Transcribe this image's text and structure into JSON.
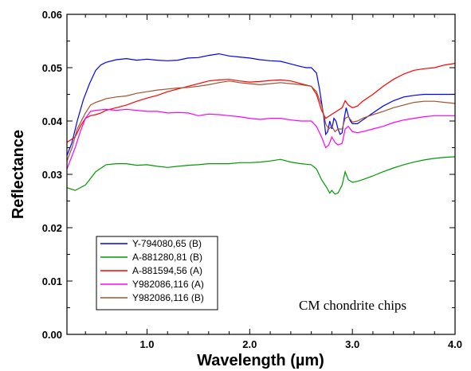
{
  "chart_data": {
    "type": "line",
    "title": "",
    "xlabel": "Wavelength (µm)",
    "ylabel": "Reflectance",
    "xlim": [
      0.22,
      4.0
    ],
    "ylim": [
      0.0,
      0.06
    ],
    "xticks": [
      1.0,
      2.0,
      3.0,
      4.0
    ],
    "xtick_labels": [
      "1.0",
      "2.0",
      "3.0",
      "4.0"
    ],
    "yticks": [
      0.0,
      0.01,
      0.02,
      0.03,
      0.04,
      0.05,
      0.06
    ],
    "ytick_labels": [
      "0.00",
      "0.01",
      "0.02",
      "0.03",
      "0.04",
      "0.05",
      "0.06"
    ],
    "grid": false,
    "legend_position": "bottom-left",
    "annotation": "CM chondrite chips",
    "series": [
      {
        "name": "Y-794080,65 (B)",
        "color": "#0000ff",
        "points": [
          [
            0.22,
            0.0335
          ],
          [
            0.27,
            0.036
          ],
          [
            0.32,
            0.04
          ],
          [
            0.38,
            0.044
          ],
          [
            0.44,
            0.047
          ],
          [
            0.5,
            0.0495
          ],
          [
            0.55,
            0.0505
          ],
          [
            0.6,
            0.051
          ],
          [
            0.7,
            0.0515
          ],
          [
            0.8,
            0.0517
          ],
          [
            0.9,
            0.0514
          ],
          [
            1.0,
            0.0516
          ],
          [
            1.1,
            0.0514
          ],
          [
            1.2,
            0.0513
          ],
          [
            1.3,
            0.0514
          ],
          [
            1.4,
            0.0518
          ],
          [
            1.5,
            0.0519
          ],
          [
            1.6,
            0.0523
          ],
          [
            1.7,
            0.0526
          ],
          [
            1.8,
            0.0522
          ],
          [
            1.9,
            0.052
          ],
          [
            2.0,
            0.0518
          ],
          [
            2.1,
            0.0515
          ],
          [
            2.2,
            0.0513
          ],
          [
            2.3,
            0.0512
          ],
          [
            2.4,
            0.0507
          ],
          [
            2.5,
            0.0502
          ],
          [
            2.55,
            0.05
          ],
          [
            2.6,
            0.05
          ],
          [
            2.65,
            0.049
          ],
          [
            2.68,
            0.046
          ],
          [
            2.72,
            0.041
          ],
          [
            2.74,
            0.0375
          ],
          [
            2.76,
            0.038
          ],
          [
            2.78,
            0.04
          ],
          [
            2.8,
            0.0385
          ],
          [
            2.82,
            0.0405
          ],
          [
            2.84,
            0.04
          ],
          [
            2.86,
            0.0385
          ],
          [
            2.88,
            0.0375
          ],
          [
            2.9,
            0.0378
          ],
          [
            2.92,
            0.0405
          ],
          [
            2.94,
            0.0425
          ],
          [
            2.96,
            0.041
          ],
          [
            2.98,
            0.04
          ],
          [
            3.0,
            0.0395
          ],
          [
            3.05,
            0.0395
          ],
          [
            3.1,
            0.0402
          ],
          [
            3.2,
            0.0415
          ],
          [
            3.3,
            0.0428
          ],
          [
            3.4,
            0.0438
          ],
          [
            3.5,
            0.0445
          ],
          [
            3.6,
            0.0448
          ],
          [
            3.7,
            0.045
          ],
          [
            3.8,
            0.045
          ],
          [
            3.9,
            0.045
          ],
          [
            4.0,
            0.045
          ]
        ]
      },
      {
        "name": "A-881280,81 (B)",
        "color": "#009900",
        "points": [
          [
            0.22,
            0.0275
          ],
          [
            0.3,
            0.027
          ],
          [
            0.4,
            0.028
          ],
          [
            0.5,
            0.0305
          ],
          [
            0.6,
            0.0318
          ],
          [
            0.7,
            0.032
          ],
          [
            0.8,
            0.032
          ],
          [
            0.9,
            0.0317
          ],
          [
            1.0,
            0.0318
          ],
          [
            1.1,
            0.0315
          ],
          [
            1.2,
            0.0313
          ],
          [
            1.3,
            0.0315
          ],
          [
            1.4,
            0.0317
          ],
          [
            1.5,
            0.0318
          ],
          [
            1.6,
            0.032
          ],
          [
            1.7,
            0.032
          ],
          [
            1.8,
            0.032
          ],
          [
            1.9,
            0.0322
          ],
          [
            2.0,
            0.0322
          ],
          [
            2.1,
            0.0323
          ],
          [
            2.2,
            0.0325
          ],
          [
            2.3,
            0.0328
          ],
          [
            2.4,
            0.0323
          ],
          [
            2.5,
            0.032
          ],
          [
            2.6,
            0.0318
          ],
          [
            2.65,
            0.031
          ],
          [
            2.7,
            0.029
          ],
          [
            2.75,
            0.0275
          ],
          [
            2.78,
            0.0265
          ],
          [
            2.8,
            0.027
          ],
          [
            2.83,
            0.0263
          ],
          [
            2.86,
            0.0265
          ],
          [
            2.9,
            0.028
          ],
          [
            2.93,
            0.0305
          ],
          [
            2.96,
            0.029
          ],
          [
            3.0,
            0.0285
          ],
          [
            3.05,
            0.0287
          ],
          [
            3.1,
            0.029
          ],
          [
            3.2,
            0.0297
          ],
          [
            3.3,
            0.0305
          ],
          [
            3.4,
            0.0312
          ],
          [
            3.5,
            0.0318
          ],
          [
            3.6,
            0.0323
          ],
          [
            3.7,
            0.0327
          ],
          [
            3.8,
            0.033
          ],
          [
            3.9,
            0.0332
          ],
          [
            4.0,
            0.0333
          ]
        ]
      },
      {
        "name": "A-881594,56 (A)",
        "color": "#ff0000",
        "points": [
          [
            0.22,
            0.036
          ],
          [
            0.3,
            0.037
          ],
          [
            0.35,
            0.039
          ],
          [
            0.4,
            0.0405
          ],
          [
            0.45,
            0.041
          ],
          [
            0.5,
            0.0412
          ],
          [
            0.55,
            0.0415
          ],
          [
            0.6,
            0.042
          ],
          [
            0.7,
            0.0425
          ],
          [
            0.8,
            0.043
          ],
          [
            0.9,
            0.0437
          ],
          [
            1.0,
            0.0443
          ],
          [
            1.1,
            0.0448
          ],
          [
            1.2,
            0.0455
          ],
          [
            1.3,
            0.046
          ],
          [
            1.4,
            0.0465
          ],
          [
            1.5,
            0.047
          ],
          [
            1.6,
            0.0475
          ],
          [
            1.7,
            0.0477
          ],
          [
            1.8,
            0.0478
          ],
          [
            1.9,
            0.0475
          ],
          [
            2.0,
            0.0473
          ],
          [
            2.1,
            0.0474
          ],
          [
            2.2,
            0.0476
          ],
          [
            2.3,
            0.0477
          ],
          [
            2.4,
            0.0475
          ],
          [
            2.5,
            0.047
          ],
          [
            2.6,
            0.0465
          ],
          [
            2.65,
            0.045
          ],
          [
            2.7,
            0.042
          ],
          [
            2.74,
            0.0405
          ],
          [
            2.78,
            0.041
          ],
          [
            2.82,
            0.0415
          ],
          [
            2.86,
            0.042
          ],
          [
            2.9,
            0.0425
          ],
          [
            2.93,
            0.0438
          ],
          [
            2.96,
            0.043
          ],
          [
            3.0,
            0.0425
          ],
          [
            3.05,
            0.0428
          ],
          [
            3.1,
            0.0437
          ],
          [
            3.2,
            0.045
          ],
          [
            3.3,
            0.0465
          ],
          [
            3.4,
            0.0478
          ],
          [
            3.5,
            0.0488
          ],
          [
            3.6,
            0.0495
          ],
          [
            3.7,
            0.0498
          ],
          [
            3.8,
            0.05
          ],
          [
            3.9,
            0.0505
          ],
          [
            4.0,
            0.0508
          ]
        ]
      },
      {
        "name": "Y982086,116 (A)",
        "color": "#ff00ff",
        "points": [
          [
            0.22,
            0.031
          ],
          [
            0.3,
            0.035
          ],
          [
            0.35,
            0.038
          ],
          [
            0.4,
            0.0405
          ],
          [
            0.45,
            0.0418
          ],
          [
            0.5,
            0.042
          ],
          [
            0.6,
            0.0422
          ],
          [
            0.7,
            0.042
          ],
          [
            0.8,
            0.0422
          ],
          [
            0.9,
            0.042
          ],
          [
            1.0,
            0.0418
          ],
          [
            1.1,
            0.0418
          ],
          [
            1.2,
            0.0415
          ],
          [
            1.3,
            0.0416
          ],
          [
            1.4,
            0.0415
          ],
          [
            1.5,
            0.041
          ],
          [
            1.6,
            0.0413
          ],
          [
            1.7,
            0.0412
          ],
          [
            1.8,
            0.041
          ],
          [
            1.9,
            0.0408
          ],
          [
            2.0,
            0.0405
          ],
          [
            2.1,
            0.0403
          ],
          [
            2.2,
            0.0405
          ],
          [
            2.3,
            0.0405
          ],
          [
            2.4,
            0.0402
          ],
          [
            2.5,
            0.04
          ],
          [
            2.6,
            0.04
          ],
          [
            2.65,
            0.039
          ],
          [
            2.7,
            0.037
          ],
          [
            2.74,
            0.035
          ],
          [
            2.77,
            0.0355
          ],
          [
            2.8,
            0.037
          ],
          [
            2.83,
            0.036
          ],
          [
            2.86,
            0.0355
          ],
          [
            2.9,
            0.0358
          ],
          [
            2.93,
            0.0385
          ],
          [
            2.96,
            0.039
          ],
          [
            3.0,
            0.038
          ],
          [
            3.05,
            0.0378
          ],
          [
            3.1,
            0.038
          ],
          [
            3.2,
            0.0385
          ],
          [
            3.3,
            0.039
          ],
          [
            3.4,
            0.0397
          ],
          [
            3.5,
            0.0402
          ],
          [
            3.6,
            0.0405
          ],
          [
            3.7,
            0.0408
          ],
          [
            3.8,
            0.041
          ],
          [
            3.9,
            0.041
          ],
          [
            4.0,
            0.041
          ]
        ]
      },
      {
        "name": "Y982086,116 (B)",
        "color": "#a0522d",
        "points": [
          [
            0.22,
            0.0325
          ],
          [
            0.27,
            0.035
          ],
          [
            0.32,
            0.0385
          ],
          [
            0.4,
            0.0415
          ],
          [
            0.45,
            0.043
          ],
          [
            0.5,
            0.0435
          ],
          [
            0.55,
            0.0438
          ],
          [
            0.6,
            0.0442
          ],
          [
            0.7,
            0.0445
          ],
          [
            0.8,
            0.0447
          ],
          [
            0.9,
            0.0452
          ],
          [
            1.0,
            0.0455
          ],
          [
            1.1,
            0.0458
          ],
          [
            1.2,
            0.046
          ],
          [
            1.3,
            0.0462
          ],
          [
            1.4,
            0.0463
          ],
          [
            1.5,
            0.0465
          ],
          [
            1.6,
            0.0468
          ],
          [
            1.7,
            0.0472
          ],
          [
            1.8,
            0.0475
          ],
          [
            1.9,
            0.0472
          ],
          [
            2.0,
            0.047
          ],
          [
            2.1,
            0.0468
          ],
          [
            2.2,
            0.047
          ],
          [
            2.3,
            0.0472
          ],
          [
            2.4,
            0.047
          ],
          [
            2.5,
            0.0468
          ],
          [
            2.6,
            0.0465
          ],
          [
            2.65,
            0.0455
          ],
          [
            2.7,
            0.043
          ],
          [
            2.74,
            0.0395
          ],
          [
            2.77,
            0.0385
          ],
          [
            2.8,
            0.039
          ],
          [
            2.83,
            0.038
          ],
          [
            2.86,
            0.0385
          ],
          [
            2.9,
            0.0385
          ],
          [
            2.93,
            0.0405
          ],
          [
            2.96,
            0.0408
          ],
          [
            3.0,
            0.0398
          ],
          [
            3.05,
            0.04
          ],
          [
            3.1,
            0.0405
          ],
          [
            3.2,
            0.0412
          ],
          [
            3.3,
            0.0418
          ],
          [
            3.4,
            0.0425
          ],
          [
            3.5,
            0.043
          ],
          [
            3.6,
            0.0435
          ],
          [
            3.7,
            0.0437
          ],
          [
            3.8,
            0.0437
          ],
          [
            3.9,
            0.0435
          ],
          [
            4.0,
            0.0433
          ]
        ]
      }
    ]
  }
}
